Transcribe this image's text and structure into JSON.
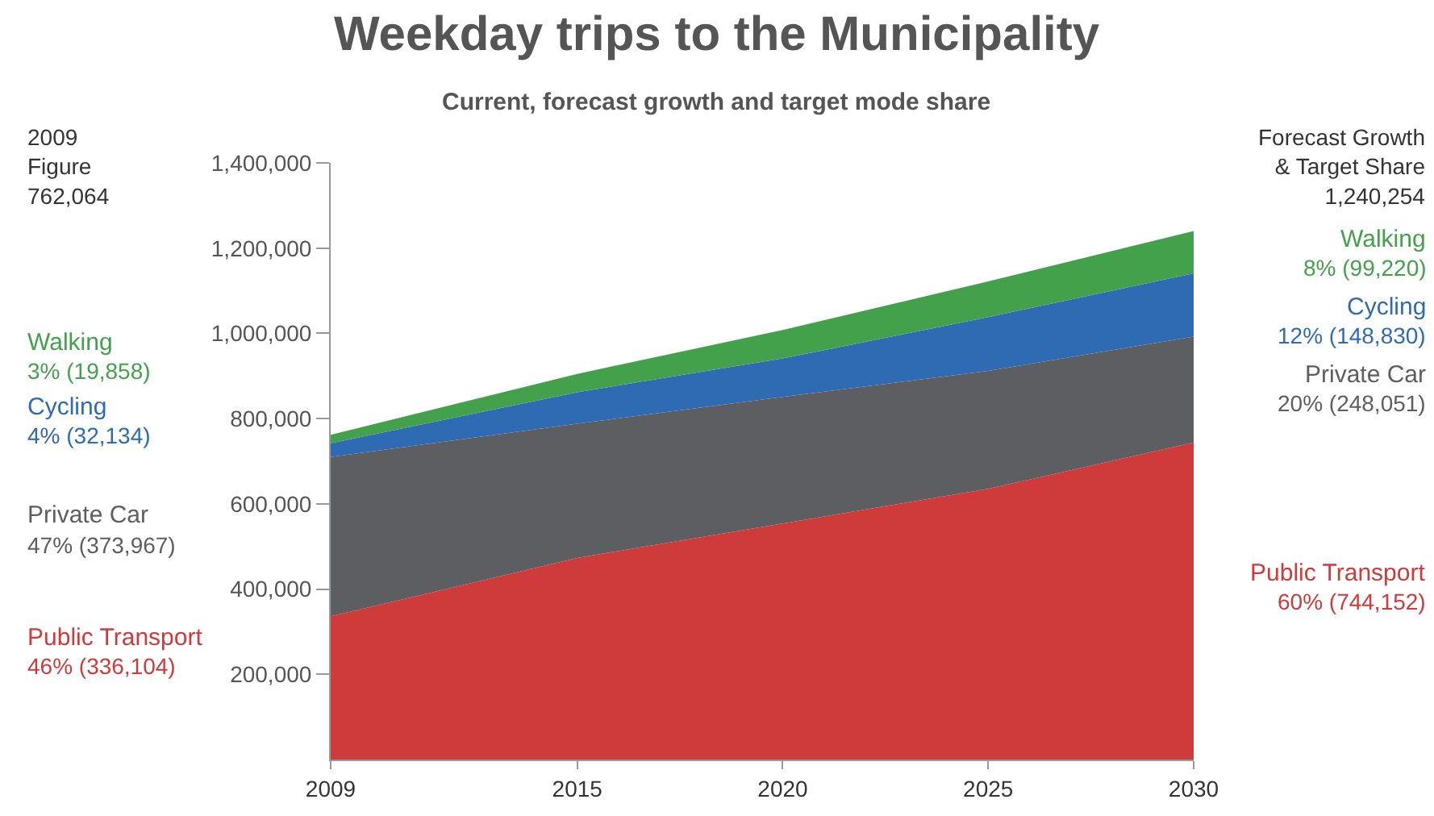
{
  "chart_data": {
    "type": "area",
    "title": "Weekday trips to the Municipality",
    "subtitle": "Current, forecast growth and target mode share",
    "stacked": true,
    "x": [
      2009,
      2015,
      2020,
      2025,
      2030
    ],
    "series": [
      {
        "name": "Public Transport",
        "color": "#cf3a3a",
        "values": [
          336104,
          473000,
          554000,
          635000,
          744152
        ]
      },
      {
        "name": "Private Car",
        "color": "#5d5e62",
        "values": [
          373967,
          315000,
          297000,
          277000,
          248051
        ]
      },
      {
        "name": "Cycling",
        "color": "#2f6bb3",
        "values": [
          32134,
          74000,
          90000,
          126000,
          148830
        ]
      },
      {
        "name": "Walking",
        "color": "#44a14b",
        "values": [
          19858,
          43000,
          67000,
          84000,
          99220
        ]
      }
    ],
    "xlim": [
      2009,
      2030
    ],
    "xticks": [
      2009,
      2015,
      2020,
      2025,
      2030
    ],
    "ylim": [
      0,
      1400000
    ],
    "yticks": [
      {
        "value": 200000,
        "label": "200,000"
      },
      {
        "value": 400000,
        "label": "400,000"
      },
      {
        "value": 600000,
        "label": "600,000"
      },
      {
        "value": 800000,
        "label": "800,000"
      },
      {
        "value": 1000000,
        "label": "1,000,000"
      },
      {
        "value": 1200000,
        "label": "1,200,000"
      },
      {
        "value": 1400000,
        "label": "1,400,000"
      }
    ],
    "annotations": [
      "2009\nFigure\n762,064",
      "46% (336,104)",
      "47% (373,967)",
      "4% (32,134)",
      "3% (19,858)",
      "Forecast Growth\n& Target Share\n1,240,254",
      "60% (744,152)",
      "20% (248,051)",
      "12% (148,830)",
      "8% (99,220)"
    ]
  }
}
